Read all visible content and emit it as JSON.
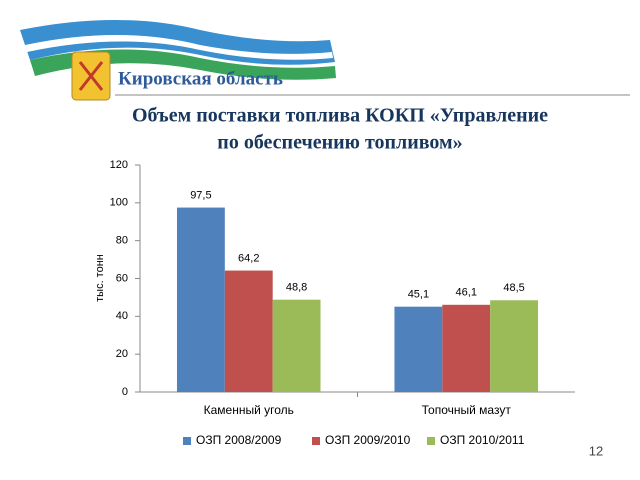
{
  "header": {
    "region": "Кировская область",
    "title": [
      "Объем поставки топлива КОКП «Управление",
      "по обеспечению топливом»"
    ],
    "page_number": "12"
  },
  "chart_data": {
    "type": "bar",
    "y_label": "тыс. тонн",
    "categories": [
      "Каменный уголь",
      "Топочный мазут"
    ],
    "series": [
      {
        "name": "ОЗП 2008/2009",
        "color": "#4f81bd",
        "values": [
          97.5,
          45.1
        ],
        "value_labels": [
          "97,5",
          "45,1"
        ]
      },
      {
        "name": "ОЗП 2009/2010",
        "color": "#c0504d",
        "values": [
          64.2,
          46.1
        ],
        "value_labels": [
          "64,2",
          "46,1"
        ]
      },
      {
        "name": "ОЗП 2010/2011",
        "color": "#9bbb59",
        "values": [
          48.8,
          48.5
        ],
        "value_labels": [
          "48,8",
          "48,5"
        ]
      }
    ],
    "ylim": [
      0,
      120
    ],
    "yticks": [
      0,
      20,
      40,
      60,
      80,
      100,
      120
    ],
    "legend": "bottom"
  }
}
